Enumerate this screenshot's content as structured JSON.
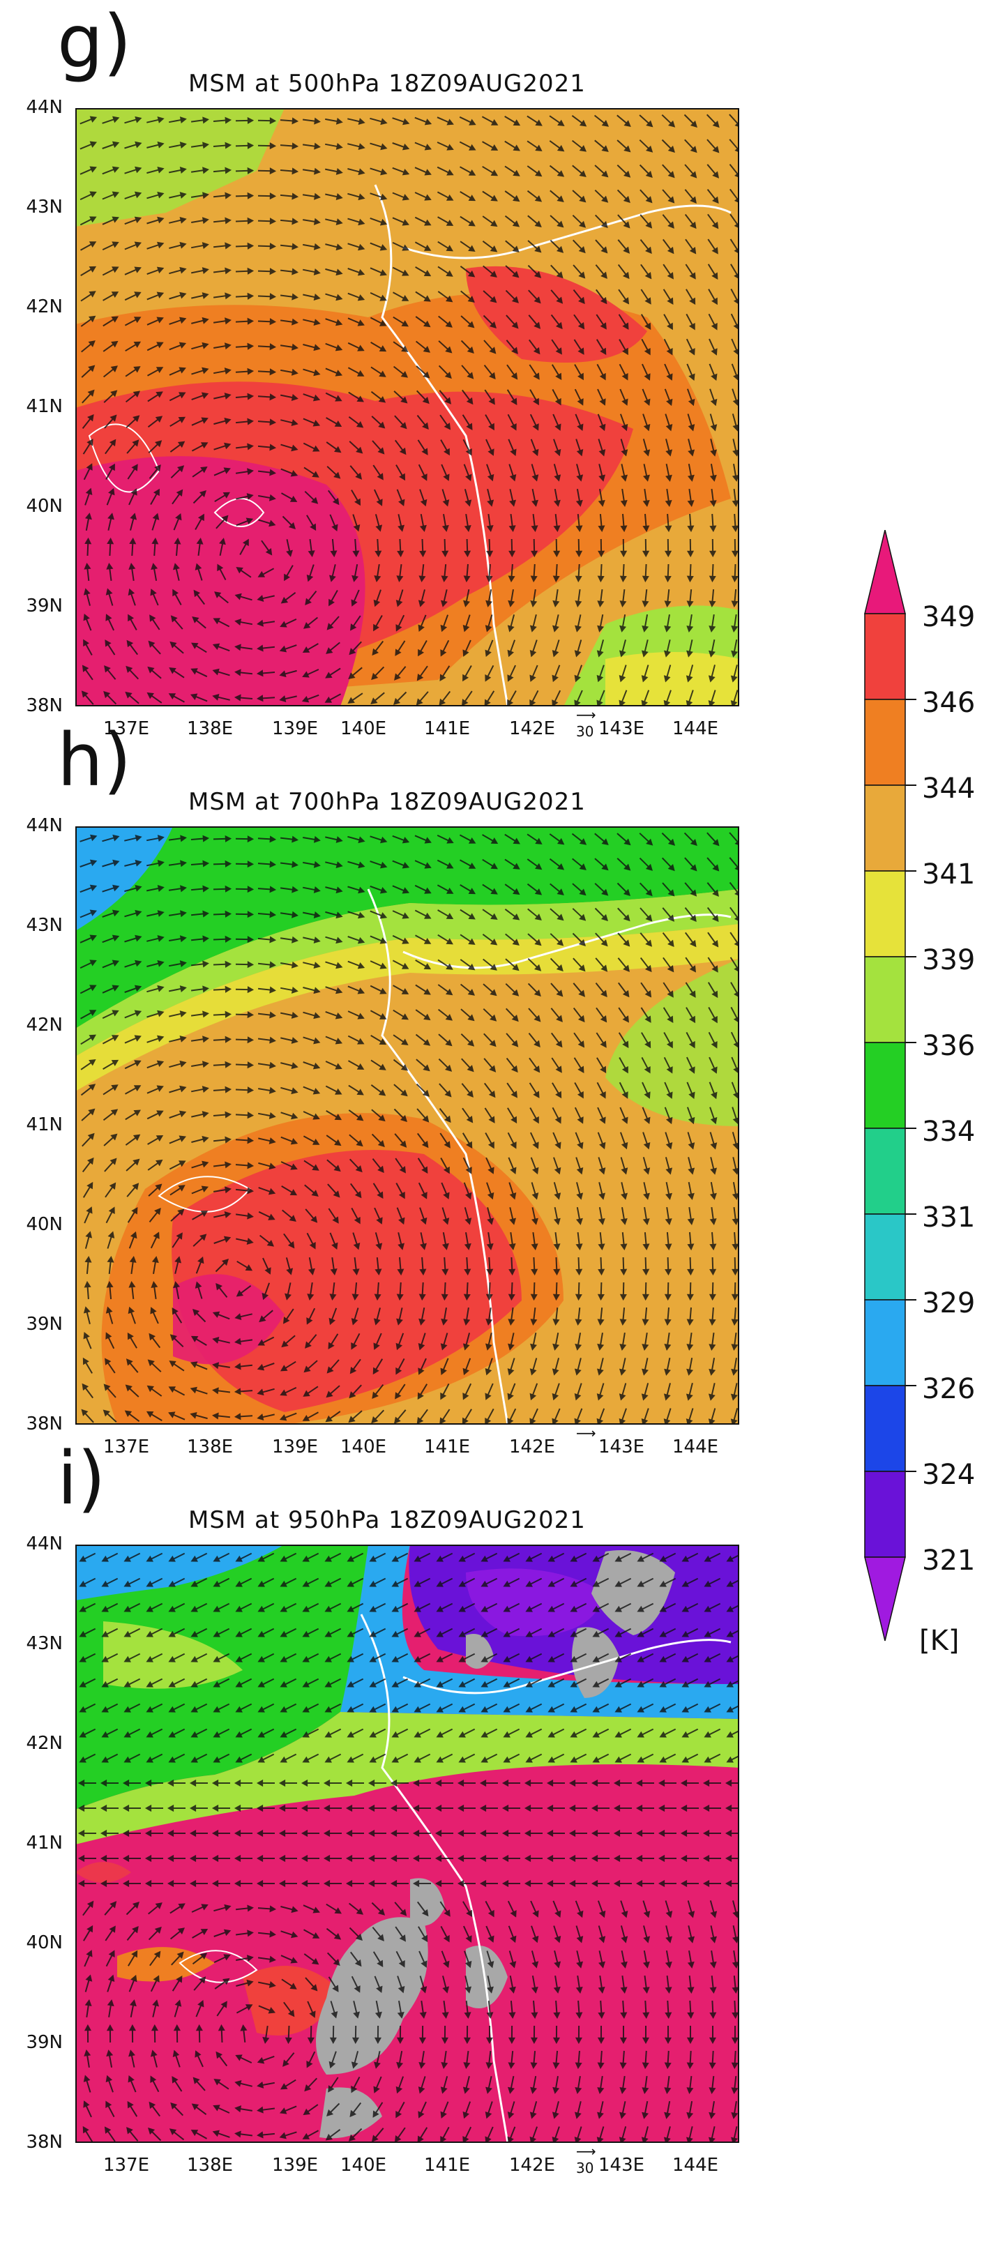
{
  "panels": [
    {
      "id": "g",
      "letter": "g)",
      "title": "MSM at 500hPa 18Z09AUG2021",
      "level": "500hPa",
      "dominant_colors": [
        "#e51f6f",
        "#f0413d",
        "#ef7f22",
        "#e8a93a"
      ],
      "has_gray_mask": false
    },
    {
      "id": "h",
      "letter": "h)",
      "title": "MSM at 700hPa 18Z09AUG2021",
      "level": "700hPa",
      "dominant_colors": [
        "#f0413d",
        "#ef7f22",
        "#e8a93a",
        "#e6e23a",
        "#a4e23e",
        "#24cf24",
        "#2aa9f0"
      ],
      "has_gray_mask": false
    },
    {
      "id": "i",
      "letter": "i)",
      "title": "MSM at 950hPa 18Z09AUG2021",
      "level": "950hPa",
      "dominant_colors": [
        "#e51f6f",
        "#f0413d",
        "#ef7f22",
        "#a4e23e",
        "#24cf24",
        "#2aa9f0",
        "#8a18e0"
      ],
      "has_gray_mask": true
    }
  ],
  "axes": {
    "x_ticks": [
      "137E",
      "138E",
      "139E",
      "140E",
      "141E",
      "142E",
      "143E",
      "144E"
    ],
    "y_ticks": [
      "44N",
      "43N",
      "42N",
      "41N",
      "40N",
      "39N",
      "38N"
    ],
    "reference_vector_label": "30"
  },
  "colorbar": {
    "levels": [
      "349",
      "346",
      "344",
      "341",
      "339",
      "336",
      "334",
      "331",
      "329",
      "326",
      "324",
      "321"
    ],
    "unit": "[K]",
    "colors": [
      "#e8197a",
      "#f0413d",
      "#ef7f22",
      "#e8a93a",
      "#e6e23a",
      "#a4e23e",
      "#24cf24",
      "#22cf8a",
      "#2ac7c7",
      "#2aa9f0",
      "#1c46e8",
      "#6a12d8",
      "#a01ae0"
    ]
  }
}
